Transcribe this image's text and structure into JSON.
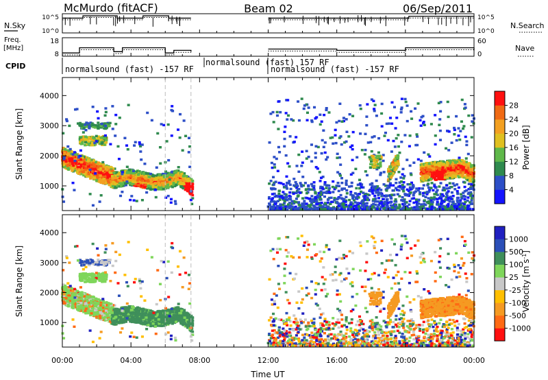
{
  "header": {
    "station": "McMurdo (fitACF)",
    "beam": "Beam 02",
    "date": "06/Sep/2011"
  },
  "left_labels": {
    "nsky": "N.Sky",
    "freq_line1": "Freq.",
    "freq_line2": "[MHz]",
    "cpid": "CPID"
  },
  "right_labels": {
    "nsearch": "N.Search",
    "nave": "Nave"
  },
  "cpid_labels": [
    "normalsound (fast) -157 RF",
    "normalsound (fast) 157 RF",
    "normalsound (fast) -157 RF"
  ],
  "colors": {
    "power": [
      "#1414ff",
      "#2d4fc7",
      "#2f8a4e",
      "#5fb84a",
      "#e0c020",
      "#f3a021",
      "#f06a14",
      "#ff1010"
    ],
    "velocity": [
      "#ff1010",
      "#ff6a14",
      "#f59a22",
      "#ffbf00",
      "#c8c8c8",
      "#7fd65b",
      "#3f8f5b",
      "#2b4fb8",
      "#2020c0"
    ]
  },
  "chart_data": [
    {
      "type": "line",
      "panel": "noise",
      "x": [
        0,
        1,
        1.2,
        3,
        3.2,
        4.5,
        4.7,
        6,
        6.2,
        7.5,
        12,
        20,
        20.2,
        24
      ],
      "series": [
        {
          "values": [
            9000,
            9000,
            40000,
            40000,
            9000,
            9000,
            40000,
            40000,
            9000,
            9000,
            9000,
            9000,
            30000,
            30000
          ]
        }
      ],
      "yscale": "log",
      "yticks_left": [
        "10^5",
        "10^0"
      ],
      "yticks_right": [
        "10^5",
        "10^0"
      ]
    },
    {
      "type": "line",
      "panel": "frequency",
      "x": [
        0,
        1,
        3,
        3.5,
        6,
        6.5,
        7.5,
        12,
        16,
        20,
        24
      ],
      "series": [
        {
          "values": [
            10,
            14,
            11,
            14,
            10,
            12,
            11,
            13,
            12,
            14,
            12
          ]
        }
      ],
      "yticks_left": [
        "18",
        "8"
      ],
      "yticks_right": [
        "60",
        "0"
      ]
    },
    {
      "type": "heatmap",
      "panel": "power",
      "xlabel": "",
      "ylabel": "Slant Range [km]",
      "xlim": [
        0,
        24
      ],
      "ylim": [
        180,
        4600
      ],
      "yticks": [
        1000,
        2000,
        3000,
        4000
      ],
      "colorbar_label": "Power [dB]",
      "colorbar_ticks": [
        "4",
        "8",
        "12",
        "16",
        "20",
        "24",
        "28"
      ],
      "data_gap": [
        7.6,
        12.0
      ]
    },
    {
      "type": "heatmap",
      "panel": "velocity",
      "xlabel": "Time UT",
      "ylabel": "Slant Range [km]",
      "xlim": [
        0,
        24
      ],
      "ylim": [
        180,
        4600
      ],
      "yticks": [
        1000,
        2000,
        3000,
        4000
      ],
      "xticks": [
        "00:00",
        "04:00",
        "08:00",
        "12:00",
        "16:00",
        "20:00",
        "00:00"
      ],
      "colorbar_label": "Velocity [m s^-1]",
      "colorbar_ticks": [
        "-1000",
        "-500",
        "-100",
        "-25",
        "25",
        "100",
        "500",
        "1000"
      ],
      "data_gap": [
        7.6,
        12.0
      ]
    }
  ]
}
